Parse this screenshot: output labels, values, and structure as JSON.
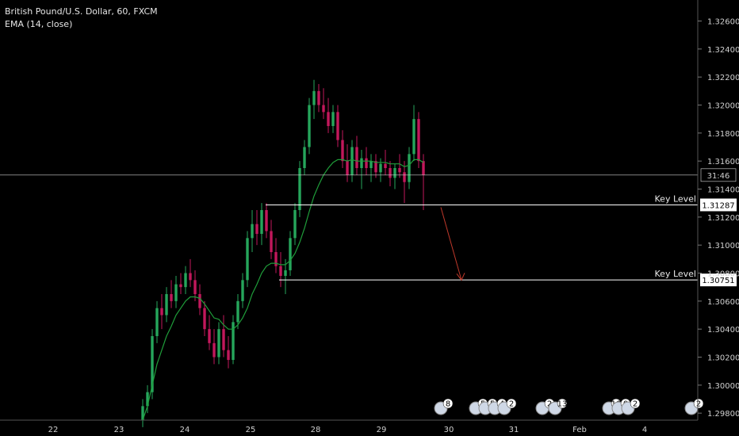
{
  "header": {
    "symbol_line": "British Pound/U.S. Dollar, 60, FXCM",
    "indicator_line": "EMA (14, close)"
  },
  "countdown": "31:46",
  "colors": {
    "up": "#26a65b",
    "down": "#c2185b",
    "ema": "#1f9d3a",
    "arrow": "#c0392b",
    "bg": "#000000"
  },
  "chart_data": {
    "type": "candlestick",
    "title": "British Pound/U.S. Dollar, 60, FXCM",
    "indicator": "EMA (14, close)",
    "ylim": [
      1.2975,
      1.3275
    ],
    "y_ticks": [
      "1.32600",
      "1.32400",
      "1.32200",
      "1.32000",
      "1.31800",
      "1.31600",
      "1.31400",
      "1.31200",
      "1.31000",
      "1.30800",
      "1.30600",
      "1.30400",
      "1.30200",
      "1.30000",
      "1.29800"
    ],
    "x_ticks": [
      "22",
      "23",
      "24",
      "25",
      "28",
      "29",
      "30",
      "31",
      "Feb",
      "4"
    ],
    "current_price_line": 1.315,
    "key_levels": [
      {
        "label": "Key Level",
        "value": "1.31287"
      },
      {
        "label": "Key Level",
        "value": "1.30751"
      }
    ],
    "projection_arrow": {
      "from_price": 1.3127,
      "to_price": 1.3075
    },
    "candles": [
      [
        1.2975,
        1.299,
        1.297,
        1.2985
      ],
      [
        1.2985,
        1.3,
        1.298,
        1.2995
      ],
      [
        1.2995,
        1.304,
        1.299,
        1.3035
      ],
      [
        1.3035,
        1.306,
        1.303,
        1.3055
      ],
      [
        1.3055,
        1.3065,
        1.304,
        1.305
      ],
      [
        1.305,
        1.307,
        1.3045,
        1.3065
      ],
      [
        1.3065,
        1.3075,
        1.3055,
        1.306
      ],
      [
        1.306,
        1.3078,
        1.3055,
        1.3072
      ],
      [
        1.3072,
        1.308,
        1.3065,
        1.307
      ],
      [
        1.307,
        1.3085,
        1.3065,
        1.308
      ],
      [
        1.308,
        1.309,
        1.307,
        1.3075
      ],
      [
        1.3075,
        1.3082,
        1.306,
        1.3065
      ],
      [
        1.3065,
        1.3072,
        1.305,
        1.3055
      ],
      [
        1.3055,
        1.306,
        1.3035,
        1.304
      ],
      [
        1.304,
        1.305,
        1.3025,
        1.303
      ],
      [
        1.303,
        1.304,
        1.3015,
        1.302
      ],
      [
        1.302,
        1.3045,
        1.3015,
        1.304
      ],
      [
        1.304,
        1.305,
        1.302,
        1.3025
      ],
      [
        1.3025,
        1.3035,
        1.3012,
        1.3018
      ],
      [
        1.3018,
        1.305,
        1.3015,
        1.3045
      ],
      [
        1.3045,
        1.3065,
        1.304,
        1.306
      ],
      [
        1.306,
        1.308,
        1.3055,
        1.3075
      ],
      [
        1.3075,
        1.311,
        1.307,
        1.3105
      ],
      [
        1.3105,
        1.3125,
        1.3095,
        1.3115
      ],
      [
        1.3115,
        1.3125,
        1.31,
        1.3108
      ],
      [
        1.3108,
        1.313,
        1.31,
        1.3125
      ],
      [
        1.3125,
        1.313,
        1.3105,
        1.311
      ],
      [
        1.311,
        1.3118,
        1.309,
        1.3095
      ],
      [
        1.3095,
        1.3105,
        1.308,
        1.3085
      ],
      [
        1.3085,
        1.3095,
        1.307,
        1.3078
      ],
      [
        1.3078,
        1.309,
        1.3065,
        1.3082
      ],
      [
        1.3082,
        1.311,
        1.3078,
        1.3105
      ],
      [
        1.3105,
        1.313,
        1.31,
        1.3125
      ],
      [
        1.3125,
        1.316,
        1.312,
        1.3155
      ],
      [
        1.3155,
        1.3175,
        1.315,
        1.317
      ],
      [
        1.317,
        1.3205,
        1.3165,
        1.32
      ],
      [
        1.32,
        1.3218,
        1.319,
        1.321
      ],
      [
        1.321,
        1.3215,
        1.3195,
        1.32
      ],
      [
        1.32,
        1.3212,
        1.319,
        1.3195
      ],
      [
        1.3195,
        1.3205,
        1.318,
        1.3185
      ],
      [
        1.3185,
        1.32,
        1.318,
        1.3195
      ],
      [
        1.3195,
        1.32,
        1.317,
        1.3175
      ],
      [
        1.3175,
        1.3182,
        1.3155,
        1.316
      ],
      [
        1.316,
        1.3172,
        1.3145,
        1.315
      ],
      [
        1.315,
        1.3175,
        1.3145,
        1.317
      ],
      [
        1.317,
        1.3178,
        1.315,
        1.3155
      ],
      [
        1.3155,
        1.3168,
        1.314,
        1.3162
      ],
      [
        1.3162,
        1.317,
        1.315,
        1.3155
      ],
      [
        1.3155,
        1.3165,
        1.3145,
        1.316
      ],
      [
        1.316,
        1.3165,
        1.3148,
        1.3152
      ],
      [
        1.3152,
        1.3162,
        1.3145,
        1.3158
      ],
      [
        1.3158,
        1.3168,
        1.315,
        1.3155
      ],
      [
        1.3155,
        1.316,
        1.3142,
        1.3148
      ],
      [
        1.3148,
        1.3158,
        1.314,
        1.3155
      ],
      [
        1.3155,
        1.3165,
        1.3148,
        1.3152
      ],
      [
        1.3152,
        1.316,
        1.313,
        1.3145
      ],
      [
        1.3145,
        1.317,
        1.314,
        1.3165
      ],
      [
        1.3165,
        1.32,
        1.316,
        1.319
      ],
      [
        1.319,
        1.3195,
        1.3155,
        1.316
      ],
      [
        1.316,
        1.3165,
        1.3125,
        1.315
      ]
    ],
    "ema_values": [
      1.2975,
      1.2985,
      1.3,
      1.3015,
      1.3025,
      1.3035,
      1.3042,
      1.305,
      1.3055,
      1.306,
      1.3063,
      1.3063,
      1.3062,
      1.3058,
      1.3053,
      1.3048,
      1.3047,
      1.3043,
      1.304,
      1.304,
      1.3043,
      1.3048,
      1.3055,
      1.3065,
      1.3072,
      1.308,
      1.3085,
      1.3087,
      1.3087,
      1.3086,
      1.3086,
      1.3089,
      1.3094,
      1.3102,
      1.3112,
      1.3124,
      1.3135,
      1.3143,
      1.315,
      1.3155,
      1.3159,
      1.3161,
      1.3161,
      1.316,
      1.3161,
      1.316,
      1.316,
      1.316,
      1.316,
      1.3159,
      1.3159,
      1.3159,
      1.3158,
      1.3158,
      1.3158,
      1.3156,
      1.3157,
      1.3161,
      1.3161,
      1.3159
    ],
    "news_badges": [
      {
        "count": "8"
      },
      {
        "count": "5"
      },
      {
        "count": "5"
      },
      {
        "count": "4"
      },
      {
        "count": "2"
      },
      {
        "count": "2"
      },
      {
        "count": "13"
      },
      {
        "count": "10"
      },
      {
        "count": "0"
      },
      {
        "count": "2"
      },
      {
        "count": "2"
      }
    ]
  }
}
